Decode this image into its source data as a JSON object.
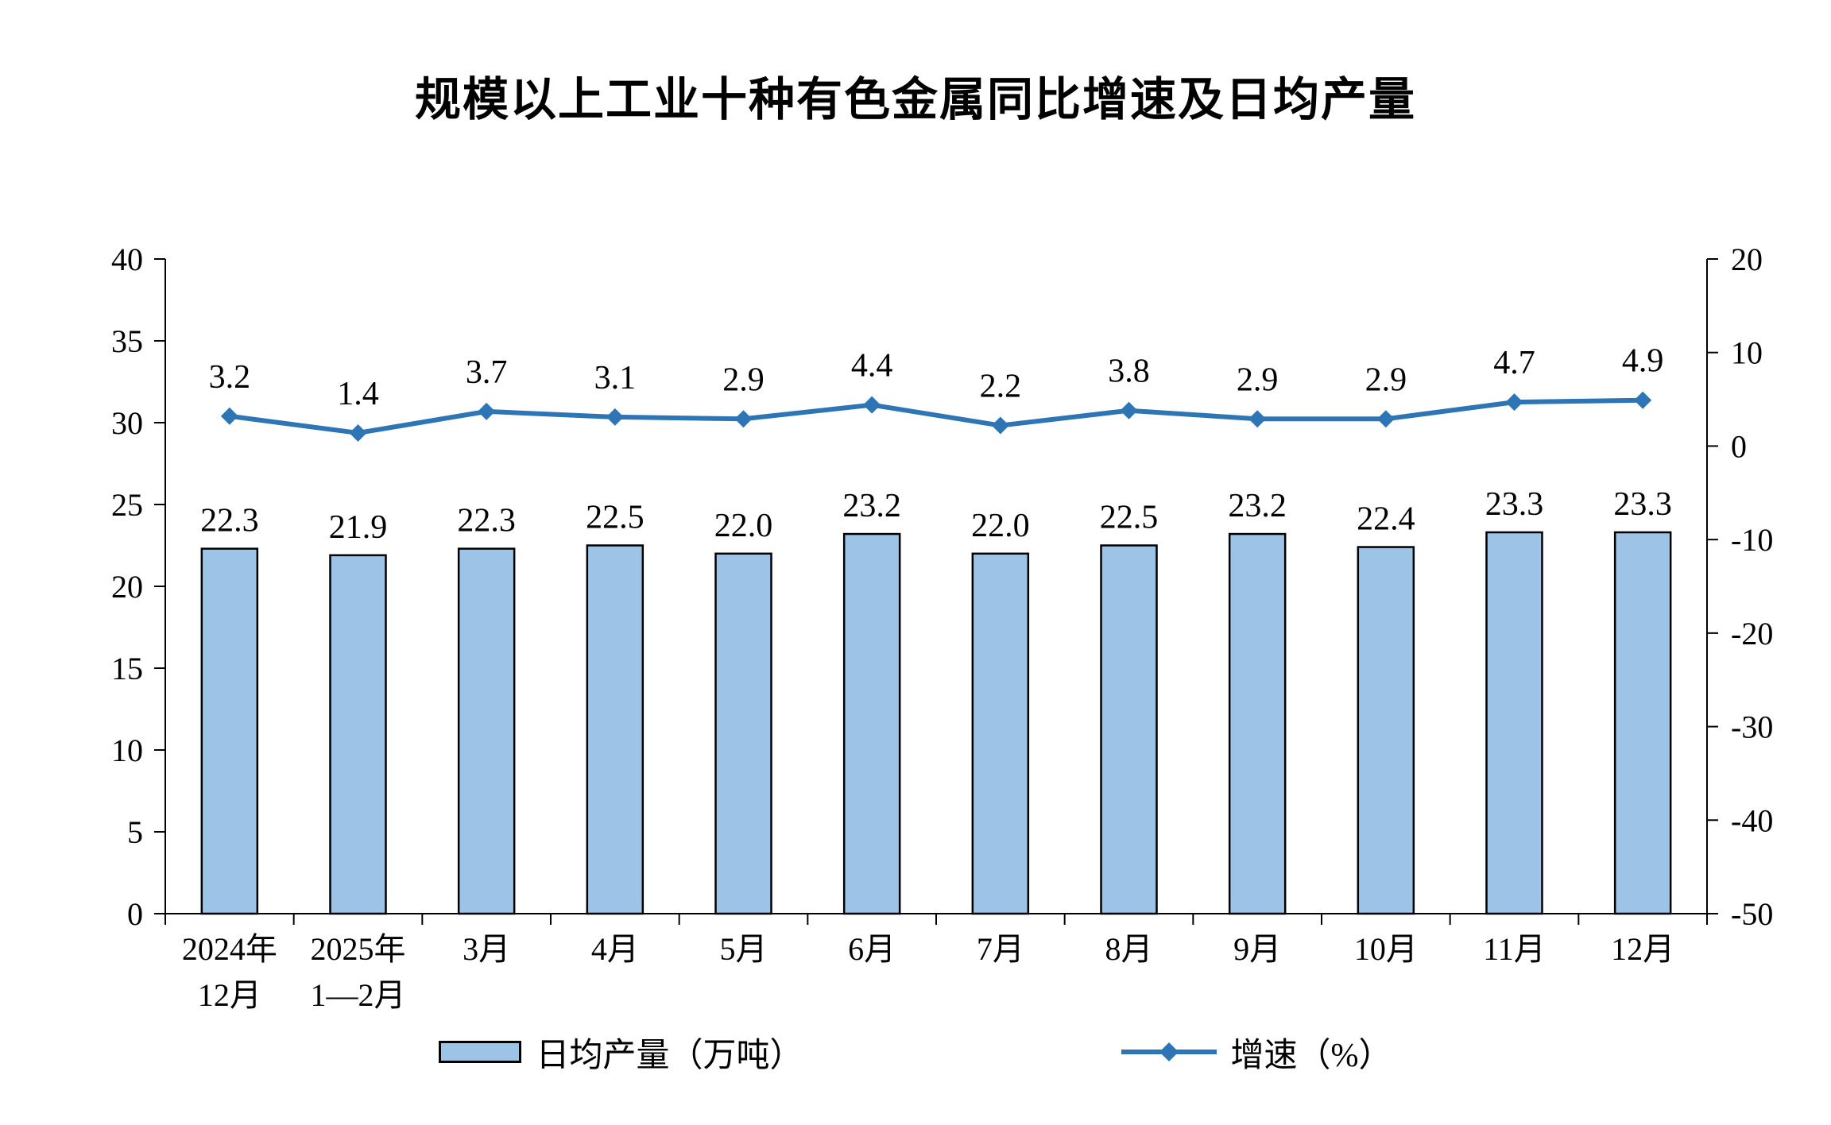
{
  "title": "规模以上工业十种有色金属同比增速及日均产量",
  "legend": {
    "bars": "日均产量（万吨）",
    "line": "增速（%）"
  },
  "colors": {
    "bar_fill": "#9DC3E6",
    "bar_stroke": "#000000",
    "line": "#2E75B6",
    "axis": "#000000",
    "text": "#000000"
  },
  "chart_data": {
    "type": "bar+line",
    "title": "规模以上工业十种有色金属同比增速及日均产量",
    "categories": [
      "2024年\n12月",
      "2025年\n1—2月",
      "3月",
      "4月",
      "5月",
      "6月",
      "7月",
      "8月",
      "9月",
      "10月",
      "11月",
      "12月"
    ],
    "series": [
      {
        "name": "日均产量（万吨）",
        "type": "bar",
        "axis": "left",
        "values": [
          22.3,
          21.9,
          22.3,
          22.5,
          22.0,
          23.2,
          22.0,
          22.5,
          23.2,
          22.4,
          23.3,
          23.3
        ]
      },
      {
        "name": "增速（%）",
        "type": "line",
        "axis": "right",
        "values": [
          3.2,
          1.4,
          3.7,
          3.1,
          2.9,
          4.4,
          2.2,
          3.8,
          2.9,
          2.9,
          4.7,
          4.9
        ]
      }
    ],
    "left_axis": {
      "min": 0,
      "max": 40,
      "step": 5,
      "ticks": [
        0,
        5,
        10,
        15,
        20,
        25,
        30,
        35,
        40
      ]
    },
    "right_axis": {
      "min": -50,
      "max": 20,
      "step": 10,
      "ticks": [
        -50,
        -40,
        -30,
        -20,
        -10,
        0,
        10,
        20
      ]
    },
    "grid": false,
    "legend_position": "bottom",
    "data_labels": true
  }
}
